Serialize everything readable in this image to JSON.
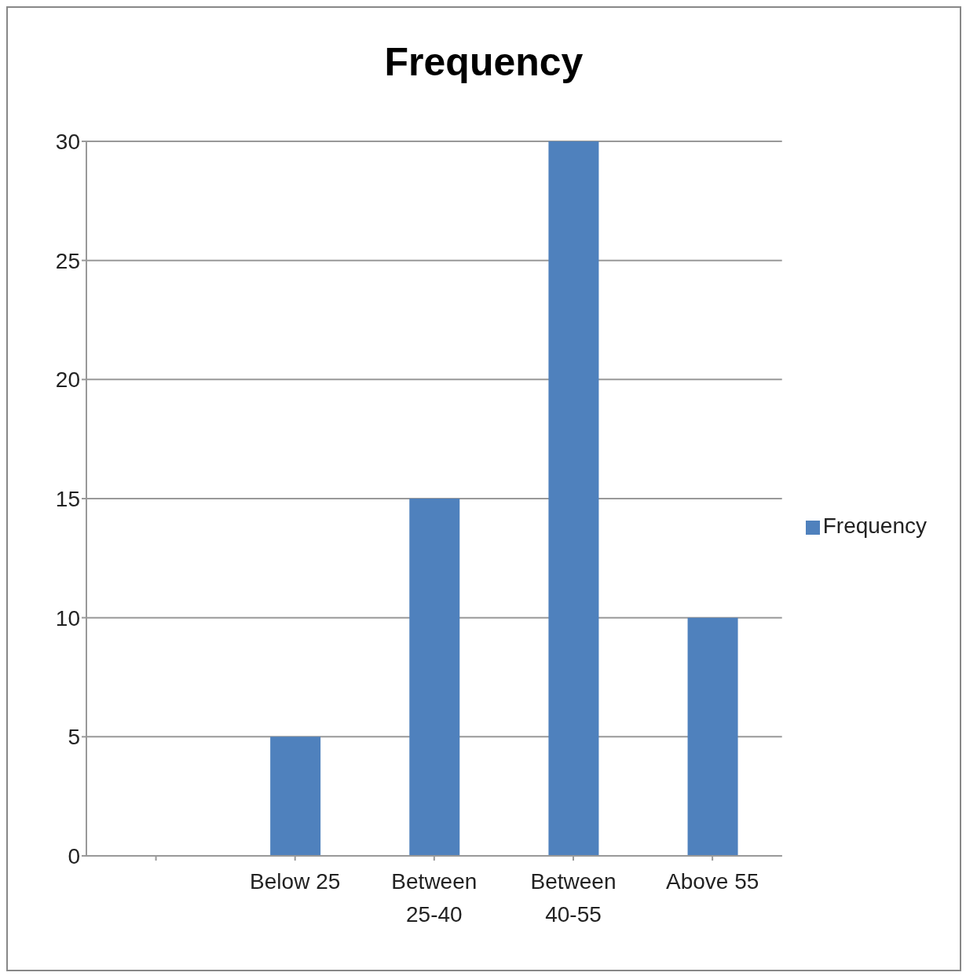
{
  "chart_data": {
    "type": "bar",
    "title": "Frequency",
    "categories": [
      null,
      "Below 25",
      "Between 25-40",
      "Between 40-55",
      "Above 55"
    ],
    "series": [
      {
        "name": "Frequency",
        "color": "#4f81bd",
        "values": [
          null,
          5,
          15,
          30,
          10
        ]
      }
    ],
    "ylim": [
      0,
      30
    ],
    "yticks": [
      0,
      5,
      10,
      15,
      20,
      25,
      30
    ],
    "grid": "y",
    "legend": "right"
  }
}
